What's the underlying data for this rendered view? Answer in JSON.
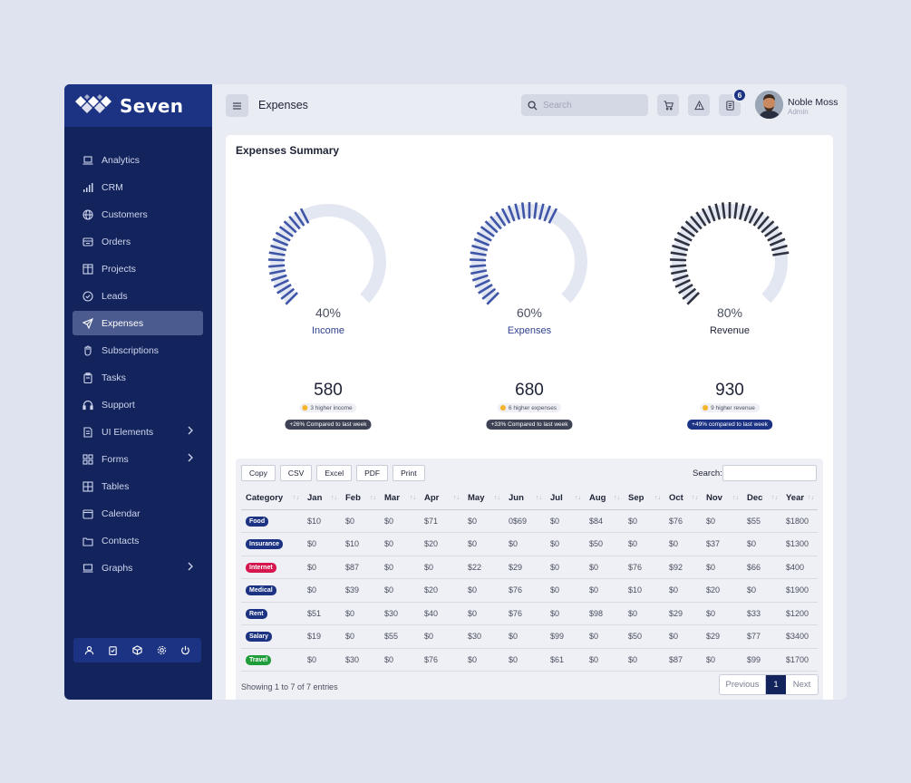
{
  "brand": {
    "name": "Seven"
  },
  "sidebar": {
    "items": [
      {
        "label": "Analytics",
        "icon": "laptop-icon"
      },
      {
        "label": "CRM",
        "icon": "bar-chart-icon"
      },
      {
        "label": "Customers",
        "icon": "globe-icon"
      },
      {
        "label": "Orders",
        "icon": "box-icon"
      },
      {
        "label": "Projects",
        "icon": "columns-icon"
      },
      {
        "label": "Leads",
        "icon": "check-circle-icon"
      },
      {
        "label": "Expenses",
        "icon": "send-icon",
        "active": true
      },
      {
        "label": "Subscriptions",
        "icon": "hand-icon"
      },
      {
        "label": "Tasks",
        "icon": "clipboard-icon"
      },
      {
        "label": "Support",
        "icon": "headphones-icon"
      },
      {
        "label": "UI Elements",
        "icon": "file-icon",
        "chevron": true
      },
      {
        "label": "Forms",
        "icon": "grid-icon",
        "chevron": true
      },
      {
        "label": "Tables",
        "icon": "table-icon"
      },
      {
        "label": "Calendar",
        "icon": "calendar-icon"
      },
      {
        "label": "Contacts",
        "icon": "folder-icon"
      },
      {
        "label": "Graphs",
        "icon": "monitor-icon",
        "chevron": true
      }
    ],
    "footer_icons": [
      "user-icon",
      "clipboard-icon",
      "cube-icon",
      "settings-icon",
      "power-icon"
    ]
  },
  "header": {
    "title": "Expenses",
    "search_placeholder": "Search",
    "notification_count": "6",
    "user_name": "Noble Moss",
    "user_role": "Admin"
  },
  "summary": {
    "title": "Expenses Summary",
    "gauges": [
      {
        "percent": "40%",
        "fraction": 0.4,
        "label": "Income",
        "label_color": "#2d3f8c",
        "color": "#3e55a8",
        "value": "580",
        "pill": "3 higher income",
        "compare": "+26% Compared to last week",
        "compare_bg": "#3d4255"
      },
      {
        "percent": "60%",
        "fraction": 0.6,
        "label": "Expenses",
        "label_color": "#2d3f8c",
        "color": "#3e55a8",
        "value": "680",
        "pill": "6 higher expenses",
        "compare": "+33% Compared to last week",
        "compare_bg": "#3d4255"
      },
      {
        "percent": "80%",
        "fraction": 0.8,
        "label": "Revenue",
        "label_color": "#1e2235",
        "color": "#2f3240",
        "value": "930",
        "pill": "9 higher revenue",
        "compare": "+49% compared to last week",
        "compare_bg": "#1c3383"
      }
    ]
  },
  "table": {
    "export_buttons": [
      "Copy",
      "CSV",
      "Excel",
      "PDF",
      "Print"
    ],
    "search_label": "Search:",
    "columns": [
      "Category",
      "Jan",
      "Feb",
      "Mar",
      "Apr",
      "May",
      "Jun",
      "Jul",
      "Aug",
      "Sep",
      "Oct",
      "Nov",
      "Dec",
      "Year"
    ],
    "rows": [
      {
        "category": "Food",
        "color": "#1c3383",
        "values": [
          "$10",
          "$0",
          "$0",
          "$71",
          "$0",
          "0$69",
          "$0",
          "$84",
          "$0",
          "$76",
          "$0",
          "$55",
          "$1800"
        ]
      },
      {
        "category": "Insurance",
        "color": "#1c3383",
        "values": [
          "$0",
          "$10",
          "$0",
          "$20",
          "$0",
          "$0",
          "$0",
          "$50",
          "$0",
          "$0",
          "$37",
          "$0",
          "$1300"
        ]
      },
      {
        "category": "Internet",
        "color": "#d6174f",
        "values": [
          "$0",
          "$87",
          "$0",
          "$0",
          "$22",
          "$29",
          "$0",
          "$0",
          "$76",
          "$92",
          "$0",
          "$66",
          "$400"
        ]
      },
      {
        "category": "Medical",
        "color": "#1c3383",
        "values": [
          "$0",
          "$39",
          "$0",
          "$20",
          "$0",
          "$76",
          "$0",
          "$0",
          "$10",
          "$0",
          "$20",
          "$0",
          "$1900"
        ]
      },
      {
        "category": "Rent",
        "color": "#1c3383",
        "values": [
          "$51",
          "$0",
          "$30",
          "$40",
          "$0",
          "$76",
          "$0",
          "$98",
          "$0",
          "$29",
          "$0",
          "$33",
          "$1200"
        ]
      },
      {
        "category": "Salary",
        "color": "#1c3383",
        "values": [
          "$19",
          "$0",
          "$55",
          "$0",
          "$30",
          "$0",
          "$99",
          "$0",
          "$50",
          "$0",
          "$29",
          "$77",
          "$3400"
        ]
      },
      {
        "category": "Travel",
        "color": "#1f9d3a",
        "values": [
          "$0",
          "$30",
          "$0",
          "$76",
          "$0",
          "$0",
          "$61",
          "$0",
          "$0",
          "$87",
          "$0",
          "$99",
          "$1700"
        ]
      }
    ],
    "showing": "Showing 1 to 7 of 7 entries",
    "pagination": {
      "previous": "Previous",
      "current": "1",
      "next": "Next"
    }
  }
}
